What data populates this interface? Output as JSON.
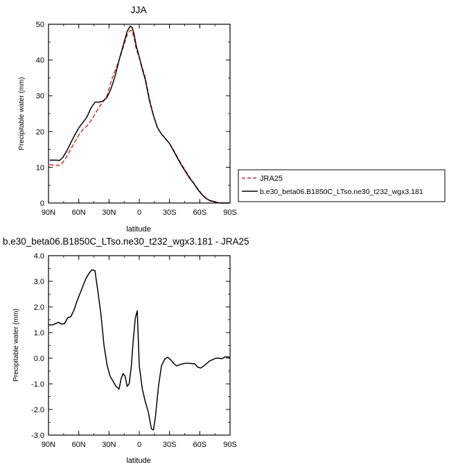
{
  "chart_data": [
    {
      "type": "line",
      "title": "JJA",
      "xlabel": "latitude",
      "ylabel": "Precipitable water (mm)",
      "xlim": [
        90,
        -90
      ],
      "ylim": [
        0,
        50
      ],
      "x_tick_values": [
        90,
        60,
        30,
        0,
        -30,
        -60,
        -90
      ],
      "x_tick_labels": [
        "90N",
        "60N",
        "30N",
        "0",
        "30S",
        "60S",
        "90S"
      ],
      "y_tick_values": [
        0,
        10,
        20,
        30,
        40,
        50
      ],
      "y_tick_labels": [
        "0",
        "10",
        "20",
        "30",
        "40",
        "50"
      ],
      "legend_position": "right",
      "series": [
        {
          "name": "JRA25",
          "color": "#e8211f",
          "dash": "dashed",
          "x": [
            89,
            85,
            82,
            79,
            76,
            72,
            68,
            64,
            60,
            56,
            52,
            48,
            44,
            40,
            36,
            32,
            28,
            24,
            20,
            16,
            12,
            9,
            7,
            5,
            3,
            1,
            -2,
            -6,
            -10,
            -14,
            -18,
            -22,
            -26,
            -30,
            -34,
            -38,
            -42,
            -46,
            -50,
            -54,
            -58,
            -62,
            -66,
            -70,
            -74,
            -78,
            -82,
            -86,
            -89
          ],
          "y": [
            10.7,
            10.6,
            10.6,
            10.5,
            11.3,
            13.0,
            15.0,
            17.0,
            19.0,
            20.5,
            21.5,
            23.0,
            24.8,
            26.8,
            28.2,
            30.0,
            34.0,
            37.0,
            40.0,
            43.5,
            47.0,
            48.3,
            48.2,
            46.0,
            43.0,
            41.5,
            38.8,
            35.0,
            29.3,
            24.5,
            21.0,
            19.3,
            18.0,
            16.7,
            14.8,
            12.8,
            10.8,
            9.0,
            7.2,
            5.6,
            4.0,
            2.5,
            1.4,
            0.6,
            0.3,
            0.1,
            0.0,
            0.0,
            0.0
          ]
        },
        {
          "name": "b.e30_beta06.B1850C_LTso.ne30_t232_wgx3.181",
          "color": "#000000",
          "dash": "solid",
          "x": [
            89,
            85,
            82,
            79,
            76,
            72,
            68,
            64,
            60,
            56,
            52,
            48,
            44,
            40,
            36,
            32,
            28,
            24,
            20,
            16,
            12,
            9,
            7,
            5,
            3,
            1,
            -2,
            -6,
            -10,
            -14,
            -18,
            -22,
            -26,
            -30,
            -34,
            -38,
            -42,
            -46,
            -50,
            -54,
            -58,
            -62,
            -66,
            -70,
            -74,
            -78,
            -82,
            -86,
            -89
          ],
          "y": [
            12.0,
            12.0,
            12.0,
            11.9,
            12.7,
            14.5,
            16.8,
            19.0,
            21.0,
            22.5,
            24.0,
            26.5,
            28.2,
            28.2,
            28.5,
            29.5,
            32.0,
            35.5,
            40.0,
            44.0,
            48.0,
            49.5,
            49.1,
            47.0,
            44.0,
            42.0,
            38.5,
            34.5,
            28.7,
            24.5,
            21.1,
            19.3,
            18.0,
            16.6,
            14.6,
            12.5,
            10.5,
            8.7,
            6.9,
            5.5,
            3.8,
            2.4,
            1.3,
            0.7,
            0.4,
            0.1,
            0.0,
            0.0,
            0.0
          ]
        }
      ]
    },
    {
      "type": "line",
      "title": "b.e30_beta06.B1850C_LTso.ne30_t232_wgx3.181 - JRA25",
      "xlabel": "latitude",
      "ylabel": "Precipitable water (mm)",
      "xlim": [
        90,
        -90
      ],
      "ylim": [
        -3.0,
        4.0
      ],
      "x_tick_values": [
        90,
        60,
        30,
        0,
        -30,
        -60,
        -90
      ],
      "x_tick_labels": [
        "90N",
        "60N",
        "30N",
        "0",
        "30S",
        "60S",
        "90S"
      ],
      "y_tick_values": [
        -3,
        -2,
        -1,
        0,
        1,
        2,
        3,
        4
      ],
      "y_tick_labels": [
        "-3.0",
        "-2.0",
        "-1.0",
        "0.0",
        "1.0",
        "2.0",
        "3.0",
        "4.0"
      ],
      "series": [
        {
          "color": "#000000",
          "dash": "solid",
          "x": [
            90,
            86,
            83,
            80,
            77,
            74,
            71,
            68,
            65,
            62,
            59,
            56,
            53,
            50,
            47,
            44,
            41,
            38,
            35,
            32,
            29,
            26,
            23,
            20,
            18,
            16,
            14,
            12,
            10,
            8,
            6,
            4,
            2,
            0,
            -3,
            -6,
            -9,
            -12,
            -14,
            -16,
            -19,
            -22,
            -25,
            -28,
            -31,
            -34,
            -37,
            -40,
            -45,
            -50,
            -55,
            -58,
            -61,
            -64,
            -67,
            -70,
            -73,
            -76,
            -79,
            -82,
            -85,
            -88,
            -90
          ],
          "y": [
            1.3,
            1.3,
            1.35,
            1.4,
            1.33,
            1.35,
            1.58,
            1.62,
            1.85,
            2.2,
            2.5,
            2.8,
            3.1,
            3.3,
            3.45,
            3.42,
            2.6,
            1.7,
            0.5,
            -0.25,
            -0.7,
            -0.9,
            -1.1,
            -1.2,
            -0.8,
            -0.6,
            -0.7,
            -1.1,
            -1.0,
            -0.35,
            0.7,
            1.55,
            1.85,
            -0.3,
            -1.2,
            -1.7,
            -2.1,
            -2.75,
            -2.8,
            -2.3,
            -1.1,
            -0.3,
            -0.05,
            0.04,
            -0.05,
            -0.2,
            -0.3,
            -0.25,
            -0.2,
            -0.2,
            -0.22,
            -0.35,
            -0.38,
            -0.3,
            -0.2,
            -0.1,
            -0.05,
            0.0,
            0.0,
            -0.02,
            0.05,
            0.05,
            0.03
          ]
        }
      ]
    }
  ]
}
